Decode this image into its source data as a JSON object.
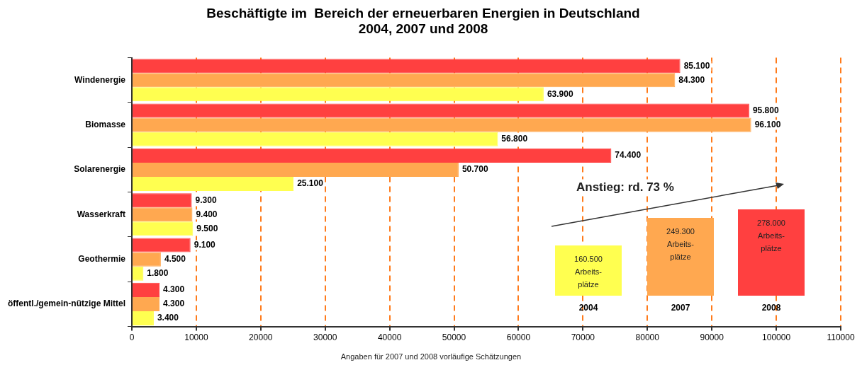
{
  "chart_data": {
    "type": "bar",
    "orientation": "horizontal",
    "title": "Beschäftigte im  Bereich der erneuerbaren Energien in Deutschland\n2004, 2007 und 2008",
    "categories": [
      "Windenergie",
      "Biomasse",
      "Solarenergie",
      "Wasserkraft",
      "Geothermie",
      "öffentl./gemein-nützige Mittel"
    ],
    "series": [
      {
        "name": "2008",
        "color": "#ff4040",
        "values": [
          85100,
          95800,
          74400,
          9300,
          9100,
          4300
        ],
        "value_labels": [
          "85.100",
          "95.800",
          "74.400",
          "9.300",
          "9.100",
          "4.300"
        ]
      },
      {
        "name": "2007",
        "color": "#ffa850",
        "values": [
          84300,
          96100,
          50700,
          9400,
          4500,
          4300
        ],
        "value_labels": [
          "84.300",
          "96.100",
          "50.700",
          "9.400",
          "4.500",
          "4.300"
        ]
      },
      {
        "name": "2004",
        "color": "#ffff50",
        "values": [
          63900,
          56800,
          25100,
          9500,
          1800,
          3400
        ],
        "value_labels": [
          "63.900",
          "56.800",
          "25.100",
          "9.500",
          "1.800",
          "3.400"
        ]
      }
    ],
    "xlim": [
      0,
      110000
    ],
    "xticks": [
      0,
      10000,
      20000,
      30000,
      40000,
      50000,
      60000,
      70000,
      80000,
      90000,
      100000,
      110000
    ],
    "grid": "x",
    "legend": "bottom right",
    "annotations": [
      "Anstieg: rd. 73 %",
      "160.500 Arbeits-plätze",
      "249.300 Arbeits-plätze",
      "278.000 Arbeits-plätze",
      "Angaben für 2007 und 2008 vorläufige Schätzungen"
    ]
  }
}
